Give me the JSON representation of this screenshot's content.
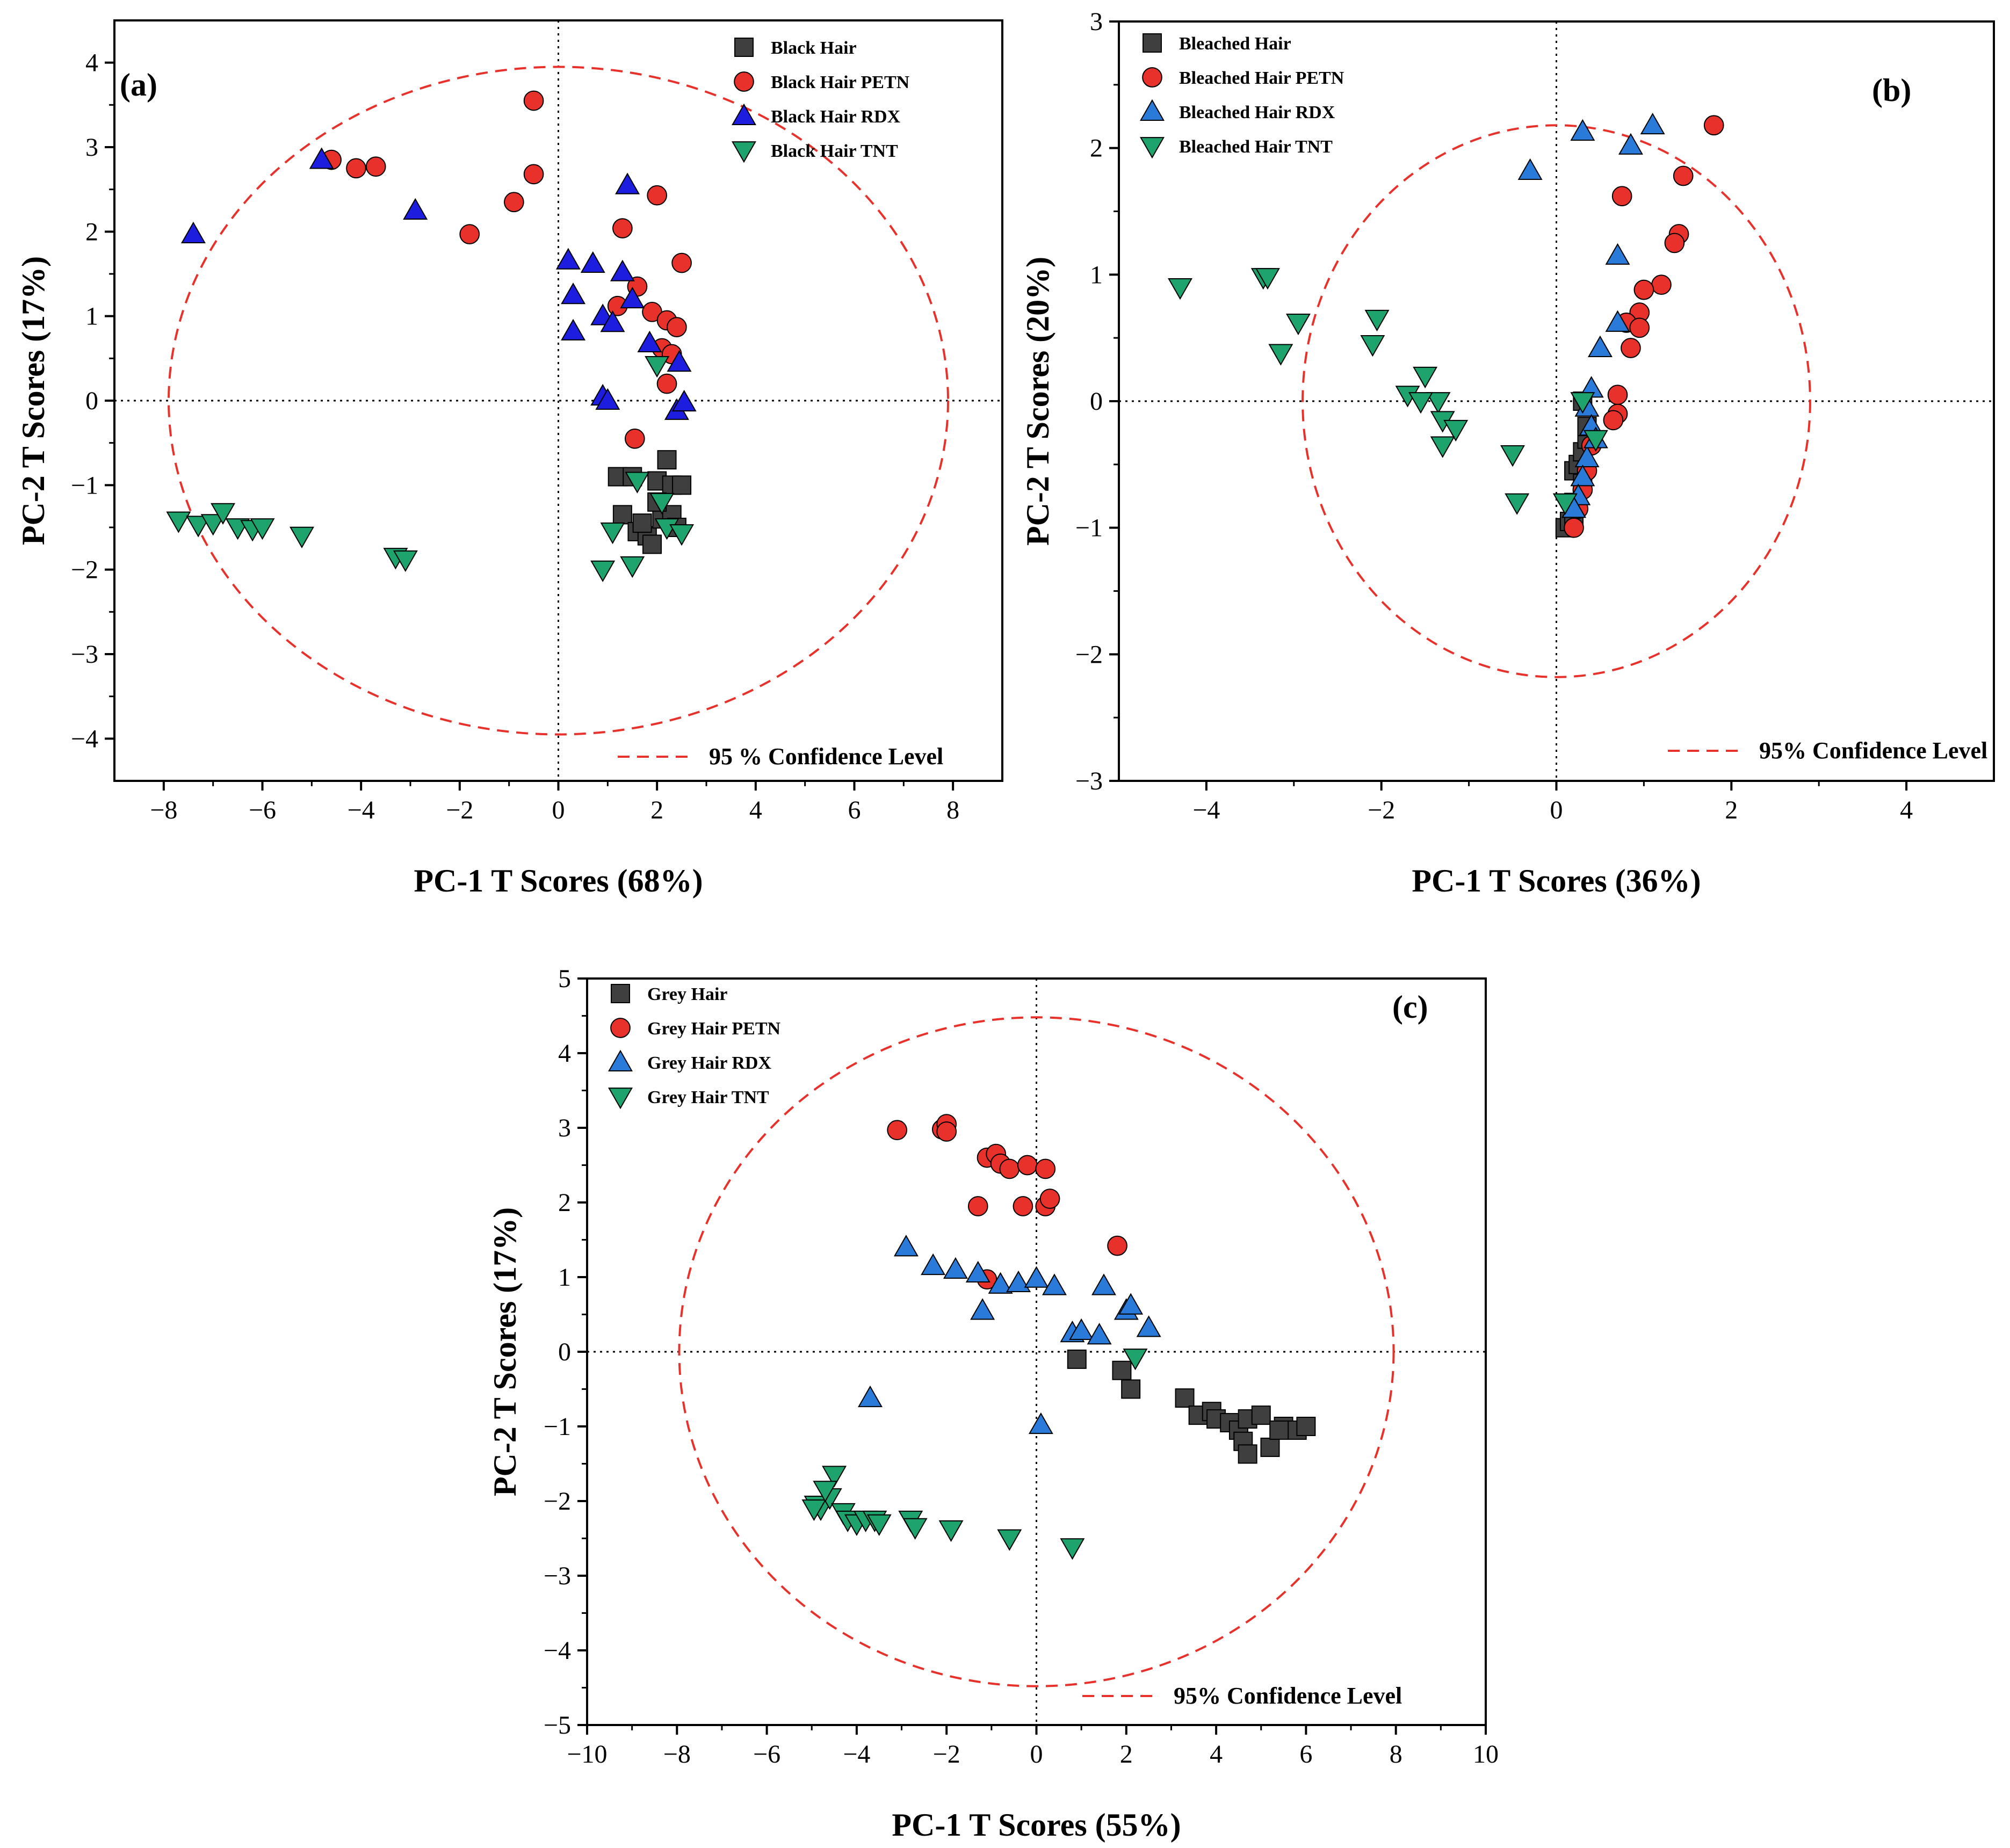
{
  "chart_data": [
    {
      "type": "scatter",
      "panel_label": "(a)",
      "xlabel": "PC-1 T Scores (68%)",
      "ylabel": "PC-2 T Scores (17%)",
      "xlim": [
        -9,
        9
      ],
      "ylim": [
        -4.5,
        4.5
      ],
      "xticks": [
        -8,
        -6,
        -4,
        -2,
        0,
        2,
        4,
        6,
        8
      ],
      "yticks": [
        -4,
        -3,
        -2,
        -1,
        0,
        1,
        2,
        3,
        4
      ],
      "ellipse": {
        "cx": 0,
        "cy": 0,
        "rx": 7.9,
        "ry": 3.95
      },
      "confidence_label": "95 % Confidence Level",
      "legend_position": "top-right",
      "series": [
        {
          "name": "Black Hair",
          "marker": "square",
          "color": "#3f3f3f",
          "points": [
            [
              1.2,
              -0.9
            ],
            [
              1.5,
              -0.9
            ],
            [
              2.0,
              -0.95
            ],
            [
              2.2,
              -0.7
            ],
            [
              2.3,
              -1.0
            ],
            [
              2.5,
              -1.0
            ],
            [
              1.3,
              -1.35
            ],
            [
              1.6,
              -1.55
            ],
            [
              1.8,
              -1.6
            ],
            [
              1.9,
              -1.7
            ],
            [
              2.1,
              -1.4
            ],
            [
              2.3,
              -1.35
            ],
            [
              2.4,
              -1.5
            ],
            [
              2.0,
              -1.2
            ],
            [
              1.7,
              -1.45
            ]
          ]
        },
        {
          "name": "Black Hair PETN",
          "marker": "circle",
          "color": "#e8312a",
          "points": [
            [
              -0.5,
              3.55
            ],
            [
              -0.5,
              2.68
            ],
            [
              -0.9,
              2.35
            ],
            [
              -1.8,
              1.97
            ],
            [
              -3.7,
              2.77
            ],
            [
              -4.1,
              2.75
            ],
            [
              -4.6,
              2.85
            ],
            [
              1.3,
              2.04
            ],
            [
              2.0,
              2.43
            ],
            [
              1.2,
              1.12
            ],
            [
              1.6,
              1.35
            ],
            [
              1.9,
              1.05
            ],
            [
              2.2,
              0.95
            ],
            [
              2.4,
              0.87
            ],
            [
              2.5,
              1.63
            ],
            [
              2.1,
              0.62
            ],
            [
              2.3,
              0.55
            ],
            [
              2.2,
              0.2
            ],
            [
              1.55,
              -0.45
            ]
          ]
        },
        {
          "name": "Black Hair RDX",
          "marker": "triangle-up",
          "color": "#1d1de0",
          "points": [
            [
              -7.4,
              1.97
            ],
            [
              -4.8,
              2.85
            ],
            [
              -2.9,
              2.25
            ],
            [
              0.2,
              1.66
            ],
            [
              0.7,
              1.62
            ],
            [
              1.4,
              2.55
            ],
            [
              1.3,
              1.52
            ],
            [
              0.3,
              1.25
            ],
            [
              1.5,
              1.2
            ],
            [
              0.9,
              1.0
            ],
            [
              1.1,
              0.92
            ],
            [
              0.3,
              0.82
            ],
            [
              1.85,
              0.68
            ],
            [
              2.45,
              0.45
            ],
            [
              0.9,
              0.05
            ],
            [
              1.0,
              0.0
            ],
            [
              2.4,
              -0.12
            ],
            [
              2.55,
              -0.02
            ]
          ]
        },
        {
          "name": "Black Hair TNT",
          "marker": "triangle-down",
          "color": "#1ea36c",
          "points": [
            [
              -7.7,
              -1.42
            ],
            [
              -7.3,
              -1.47
            ],
            [
              -7.0,
              -1.45
            ],
            [
              -6.8,
              -1.32
            ],
            [
              -6.5,
              -1.5
            ],
            [
              -6.2,
              -1.52
            ],
            [
              -6.0,
              -1.5
            ],
            [
              -5.2,
              -1.6
            ],
            [
              -3.3,
              -1.85
            ],
            [
              -3.1,
              -1.88
            ],
            [
              1.6,
              -0.95
            ],
            [
              2.0,
              0.42
            ],
            [
              2.1,
              -1.2
            ],
            [
              1.1,
              -1.55
            ],
            [
              2.2,
              -1.5
            ],
            [
              2.5,
              -1.57
            ],
            [
              1.5,
              -1.95
            ],
            [
              0.9,
              -2.0
            ]
          ]
        }
      ]
    },
    {
      "type": "scatter",
      "panel_label": "(b)",
      "xlabel": "PC-1 T Scores (36%)",
      "ylabel": "PC-2 T Scores (20%)",
      "xlim": [
        -5,
        5
      ],
      "ylim": [
        -3,
        3
      ],
      "xticks": [
        -4,
        -2,
        0,
        2,
        4
      ],
      "yticks": [
        -3,
        -2,
        -1,
        0,
        1,
        2,
        3
      ],
      "ellipse": {
        "cx": 0,
        "cy": 0,
        "rx": 2.9,
        "ry": 2.18
      },
      "confidence_label": "95% Confidence Level",
      "legend_position": "top-left",
      "series": [
        {
          "name": "Bleached Hair",
          "marker": "square",
          "color": "#3f3f3f",
          "points": [
            [
              0.1,
              -1.0
            ],
            [
              0.15,
              -0.95
            ],
            [
              0.2,
              -0.8
            ],
            [
              0.2,
              -0.55
            ],
            [
              0.25,
              -0.5
            ],
            [
              0.3,
              -0.65
            ],
            [
              0.3,
              -0.4
            ],
            [
              0.35,
              -0.3
            ],
            [
              0.35,
              -0.2
            ],
            [
              0.3,
              0.0
            ],
            [
              0.2,
              -0.9
            ]
          ]
        },
        {
          "name": "Bleached Hair PETN",
          "marker": "circle",
          "color": "#e8312a",
          "points": [
            [
              1.8,
              2.18
            ],
            [
              1.45,
              1.78
            ],
            [
              0.75,
              1.62
            ],
            [
              1.4,
              1.32
            ],
            [
              1.35,
              1.25
            ],
            [
              1.2,
              0.92
            ],
            [
              1.0,
              0.88
            ],
            [
              0.95,
              0.7
            ],
            [
              0.8,
              0.62
            ],
            [
              0.95,
              0.58
            ],
            [
              0.85,
              0.42
            ],
            [
              0.7,
              0.05
            ],
            [
              0.7,
              -0.1
            ],
            [
              0.65,
              -0.15
            ],
            [
              0.4,
              -0.35
            ],
            [
              0.35,
              -0.55
            ],
            [
              0.3,
              -0.7
            ],
            [
              0.25,
              -0.85
            ],
            [
              0.2,
              -1.0
            ]
          ]
        },
        {
          "name": "Bleached Hair RDX",
          "marker": "triangle-up",
          "color": "#2a7ad9",
          "points": [
            [
              1.1,
              2.18
            ],
            [
              0.3,
              2.13
            ],
            [
              0.85,
              2.02
            ],
            [
              -0.3,
              1.82
            ],
            [
              0.7,
              1.15
            ],
            [
              0.7,
              0.62
            ],
            [
              0.5,
              0.42
            ],
            [
              0.4,
              0.1
            ],
            [
              0.35,
              -0.05
            ],
            [
              0.4,
              -0.2
            ],
            [
              0.35,
              -0.45
            ],
            [
              0.3,
              -0.6
            ],
            [
              0.25,
              -0.75
            ],
            [
              0.2,
              -0.85
            ],
            [
              0.45,
              -0.3
            ]
          ]
        },
        {
          "name": "Bleached Hair TNT",
          "marker": "triangle-down",
          "color": "#1ea36c",
          "points": [
            [
              -4.3,
              0.9
            ],
            [
              -3.35,
              0.98
            ],
            [
              -3.3,
              0.98
            ],
            [
              -3.15,
              0.38
            ],
            [
              -2.95,
              0.62
            ],
            [
              -2.05,
              0.65
            ],
            [
              -2.1,
              0.45
            ],
            [
              -1.5,
              0.2
            ],
            [
              -1.7,
              0.05
            ],
            [
              -1.35,
              0.0
            ],
            [
              -1.55,
              0.0
            ],
            [
              -1.3,
              -0.15
            ],
            [
              -1.15,
              -0.22
            ],
            [
              -1.3,
              -0.35
            ],
            [
              -0.5,
              -0.42
            ],
            [
              -0.45,
              -0.8
            ],
            [
              0.1,
              -0.8
            ],
            [
              0.45,
              -0.3
            ],
            [
              0.3,
              0.0
            ]
          ]
        }
      ]
    },
    {
      "type": "scatter",
      "panel_label": "(c)",
      "xlabel": "PC-1 T Scores (55%)",
      "ylabel": "PC-2 T Scores (17%)",
      "xlim": [
        -10,
        10
      ],
      "ylim": [
        -5,
        5
      ],
      "xticks": [
        -10,
        -8,
        -6,
        -4,
        -2,
        0,
        2,
        4,
        6,
        8,
        10
      ],
      "yticks": [
        -5,
        -4,
        -3,
        -2,
        -1,
        0,
        1,
        2,
        3,
        4,
        5
      ],
      "ellipse": {
        "cx": 0,
        "cy": 0,
        "rx": 7.95,
        "ry": 4.48
      },
      "confidence_label": "95% Confidence Level",
      "legend_position": "top-left",
      "series": [
        {
          "name": "Grey Hair",
          "marker": "square",
          "color": "#3f3f3f",
          "points": [
            [
              0.9,
              -0.1
            ],
            [
              1.9,
              -0.25
            ],
            [
              2.1,
              -0.5
            ],
            [
              3.3,
              -0.62
            ],
            [
              3.6,
              -0.85
            ],
            [
              3.9,
              -0.8
            ],
            [
              4.0,
              -0.9
            ],
            [
              4.3,
              -0.95
            ],
            [
              4.5,
              -1.05
            ],
            [
              4.7,
              -0.9
            ],
            [
              5.0,
              -0.85
            ],
            [
              4.6,
              -1.2
            ],
            [
              4.7,
              -1.37
            ],
            [
              5.2,
              -1.28
            ],
            [
              5.5,
              -1.0
            ],
            [
              5.8,
              -1.05
            ],
            [
              6.0,
              -1.0
            ],
            [
              5.4,
              -1.05
            ]
          ]
        },
        {
          "name": "Grey Hair PETN",
          "marker": "circle",
          "color": "#e8312a",
          "points": [
            [
              -3.1,
              2.97
            ],
            [
              -2.1,
              2.98
            ],
            [
              -2.0,
              3.05
            ],
            [
              -2.0,
              2.95
            ],
            [
              -1.1,
              2.6
            ],
            [
              -0.9,
              2.65
            ],
            [
              -0.8,
              2.52
            ],
            [
              -0.6,
              2.45
            ],
            [
              -0.2,
              2.5
            ],
            [
              0.2,
              2.45
            ],
            [
              -1.3,
              1.95
            ],
            [
              -0.3,
              1.95
            ],
            [
              0.2,
              1.95
            ],
            [
              0.3,
              2.05
            ],
            [
              1.8,
              1.42
            ],
            [
              -1.1,
              0.97
            ]
          ]
        },
        {
          "name": "Grey Hair RDX",
          "marker": "triangle-up",
          "color": "#2a7ad9",
          "points": [
            [
              -2.9,
              1.4
            ],
            [
              -2.3,
              1.15
            ],
            [
              -1.8,
              1.1
            ],
            [
              -1.3,
              1.05
            ],
            [
              -1.2,
              0.55
            ],
            [
              -0.8,
              0.9
            ],
            [
              -0.4,
              0.92
            ],
            [
              0.0,
              0.98
            ],
            [
              0.4,
              0.88
            ],
            [
              0.8,
              0.25
            ],
            [
              1.0,
              0.28
            ],
            [
              1.5,
              0.88
            ],
            [
              1.4,
              0.22
            ],
            [
              2.0,
              0.55
            ],
            [
              2.1,
              0.62
            ],
            [
              2.5,
              0.32
            ],
            [
              -3.7,
              -0.62
            ],
            [
              0.1,
              -0.98
            ]
          ]
        },
        {
          "name": "Grey Hair TNT",
          "marker": "triangle-down",
          "color": "#1ea36c",
          "points": [
            [
              -4.9,
              -2.05
            ],
            [
              -4.8,
              -2.1
            ],
            [
              -4.6,
              -1.95
            ],
            [
              -4.5,
              -1.65
            ],
            [
              -4.3,
              -2.15
            ],
            [
              -4.2,
              -2.25
            ],
            [
              -4.0,
              -2.3
            ],
            [
              -3.8,
              -2.25
            ],
            [
              -3.6,
              -2.25
            ],
            [
              -3.5,
              -2.3
            ],
            [
              -2.8,
              -2.25
            ],
            [
              -2.7,
              -2.35
            ],
            [
              -1.9,
              -2.38
            ],
            [
              -0.6,
              -2.5
            ],
            [
              0.8,
              -2.62
            ],
            [
              2.2,
              -0.08
            ],
            [
              -4.95,
              -2.1
            ],
            [
              -4.7,
              -1.85
            ]
          ]
        }
      ]
    }
  ]
}
